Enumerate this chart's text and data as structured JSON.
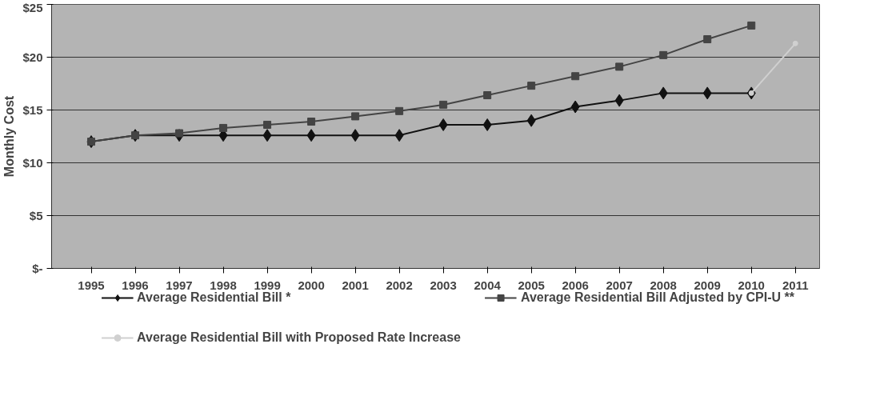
{
  "chart_data": {
    "type": "line",
    "ylabel": "Monthly Cost",
    "categories": [
      "1995",
      "1996",
      "1997",
      "1998",
      "1999",
      "2000",
      "2001",
      "2002",
      "2003",
      "2004",
      "2005",
      "2006",
      "2007",
      "2008",
      "2009",
      "2010",
      "2011"
    ],
    "series": [
      {
        "name": "Average Residential Bill *",
        "color": "#111111",
        "marker": "diamond",
        "values": [
          12.0,
          12.6,
          12.6,
          12.6,
          12.6,
          12.6,
          12.6,
          12.6,
          13.6,
          13.6,
          14.0,
          15.3,
          15.9,
          16.6,
          16.6,
          16.6,
          null
        ]
      },
      {
        "name": "Average Residential Bill Adjusted by CPI-U **",
        "color": "#444444",
        "marker": "square",
        "values": [
          12.0,
          12.6,
          12.8,
          13.3,
          13.6,
          13.9,
          14.4,
          14.9,
          15.5,
          16.4,
          17.3,
          18.2,
          19.1,
          20.2,
          21.7,
          23.0,
          null
        ]
      },
      {
        "name": "Average Residential Bill with Proposed Rate Increase",
        "color": "#d0d0d0",
        "marker": "circle",
        "values": [
          null,
          null,
          null,
          null,
          null,
          null,
          null,
          null,
          null,
          null,
          null,
          null,
          null,
          null,
          null,
          16.6,
          21.3
        ]
      }
    ],
    "ylim": [
      0,
      25
    ],
    "yticks": [
      {
        "value": 0,
        "label": "$-"
      },
      {
        "value": 5,
        "label": "$5"
      },
      {
        "value": 10,
        "label": "$10"
      },
      {
        "value": 15,
        "label": "$15"
      },
      {
        "value": 20,
        "label": "$20"
      },
      {
        "value": 25,
        "label": "$25"
      }
    ],
    "grid": "y",
    "legend": "bottom"
  }
}
